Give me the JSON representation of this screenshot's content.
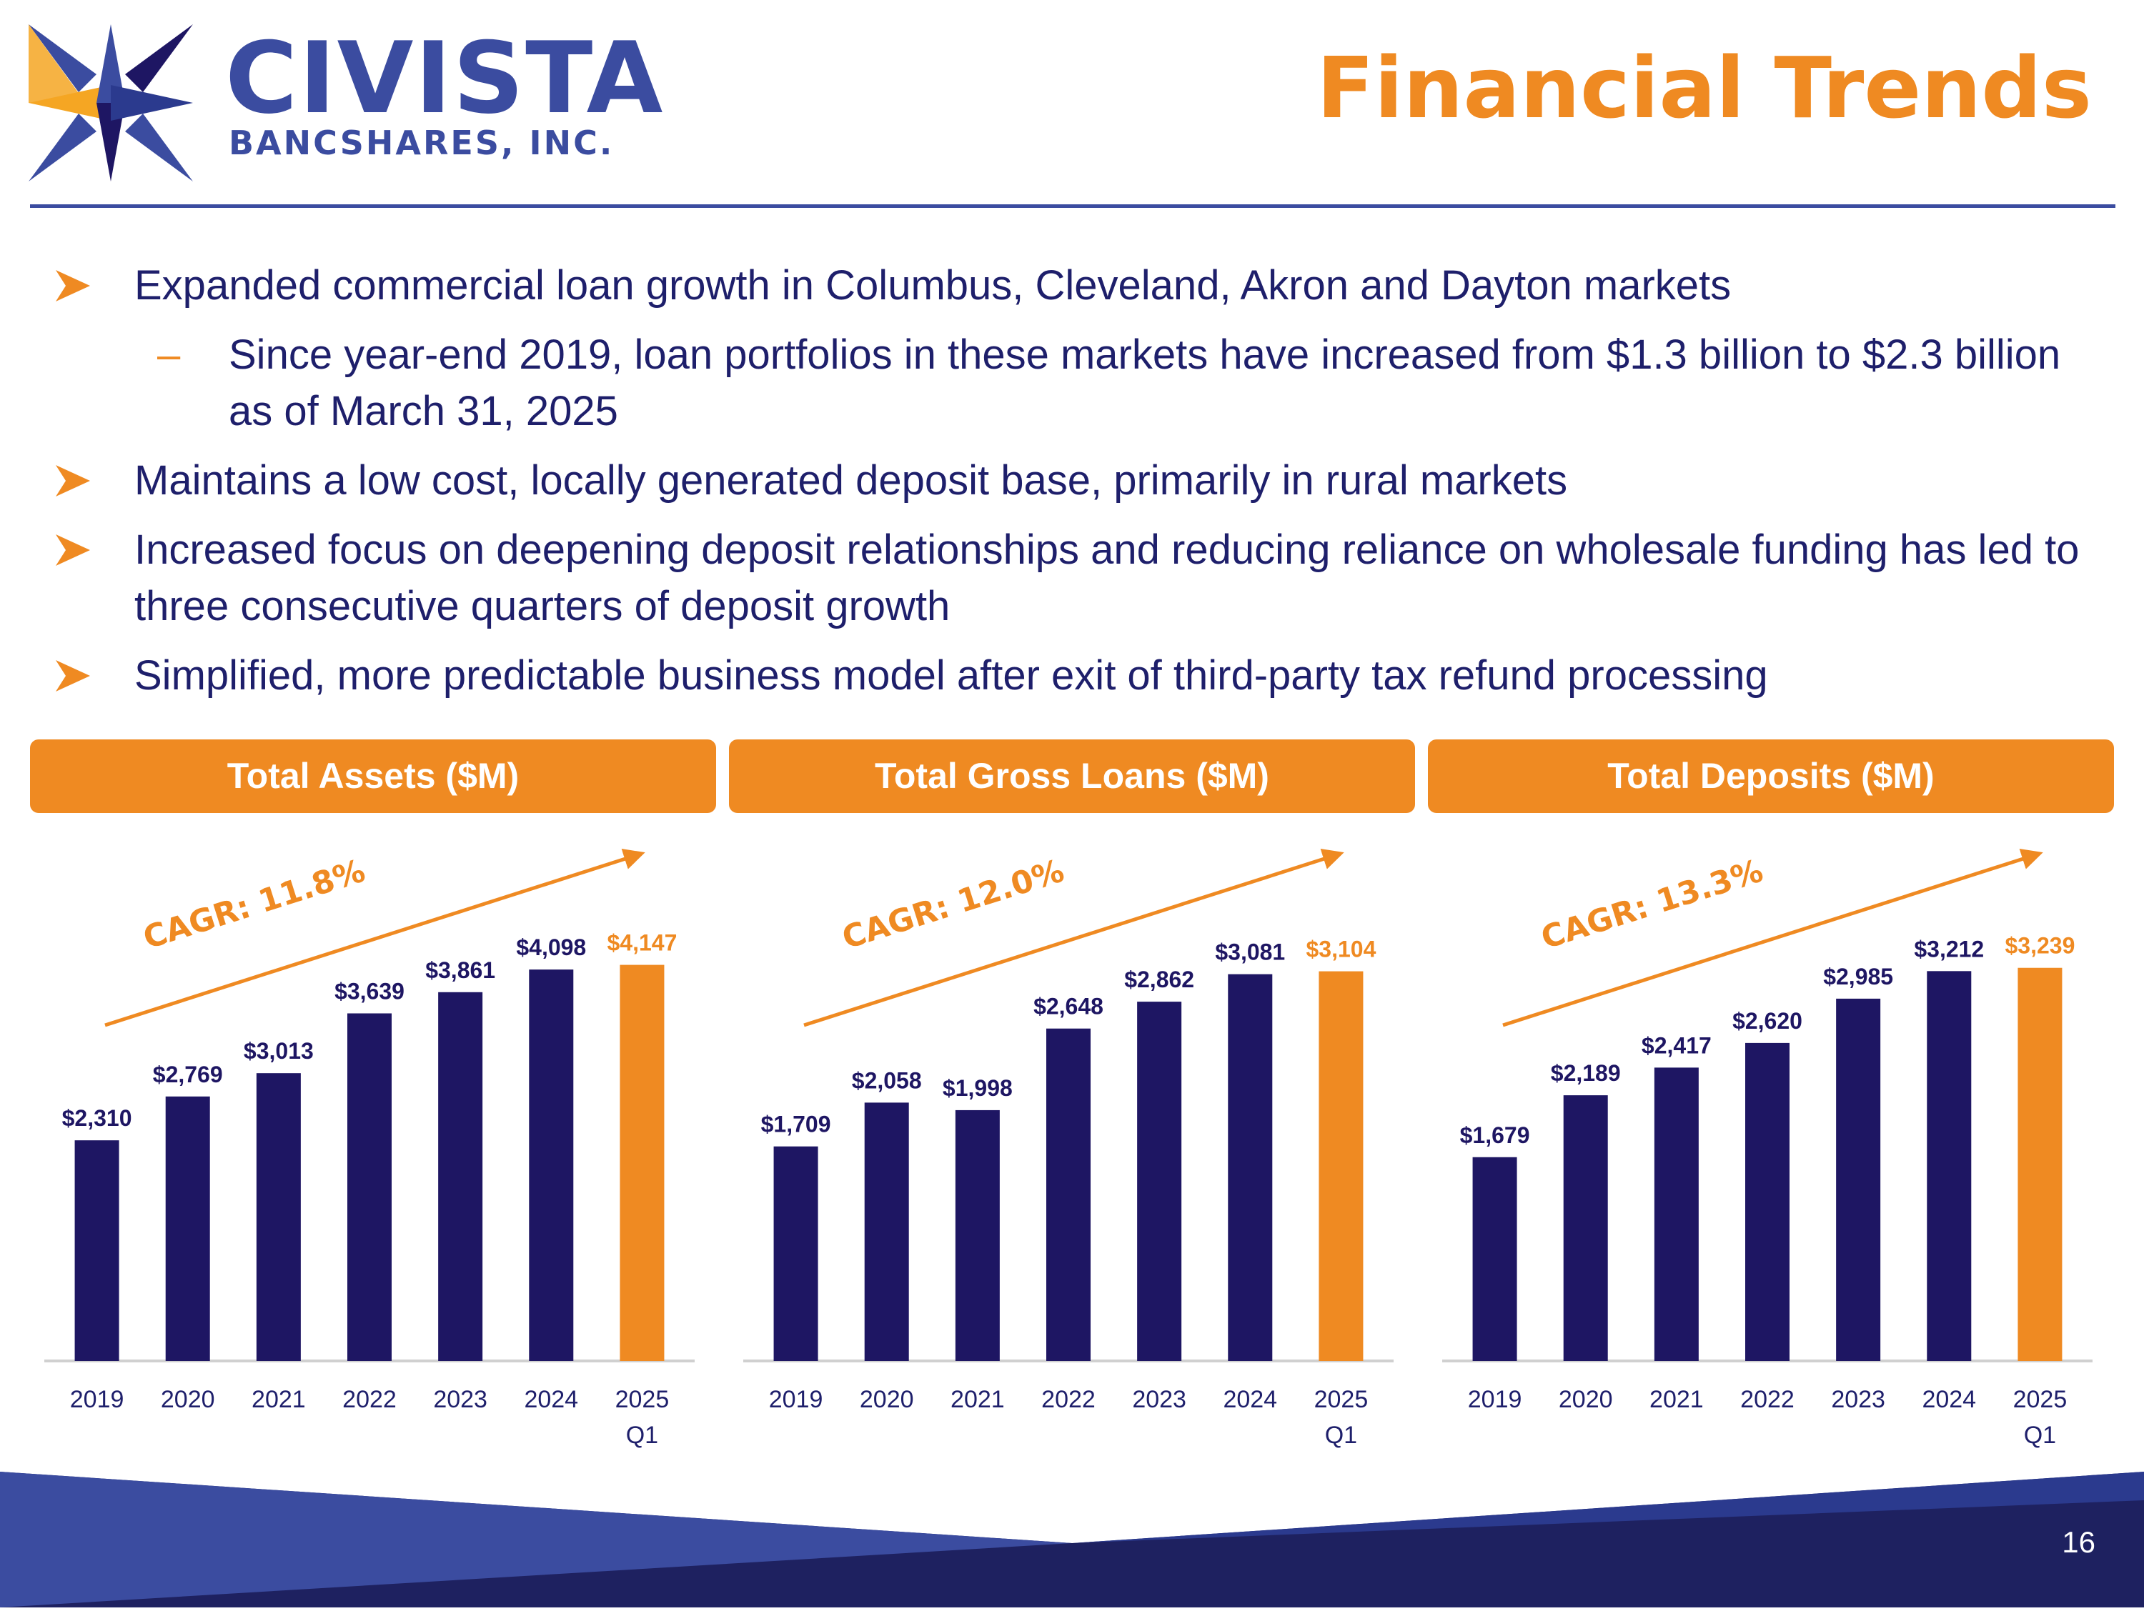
{
  "header": {
    "logo_name": "CIVISTA",
    "logo_sub": "BANCSHARES, INC.",
    "title": "Financial Trends"
  },
  "bullets": [
    {
      "text": "Expanded commercial loan growth in Columbus, Cleveland, Akron and Dayton markets"
    },
    {
      "text": "Since year-end 2019, loan portfolios in these markets have increased from $1.3 billion to $2.3 billion as of March 31, 2025",
      "sub": true
    },
    {
      "text": "Maintains a low cost, locally generated deposit base, primarily in rural markets"
    },
    {
      "text": "Increased focus on deepening deposit relationships and reducing reliance on wholesale funding has led to three consecutive quarters of deposit growth"
    },
    {
      "text": "Simplified, more predictable business model after exit of third-party tax refund processing"
    }
  ],
  "colors": {
    "navy": "#1e1663",
    "orange": "#ef8a22",
    "brand_blue": "#3b4ca0"
  },
  "chart_data": [
    {
      "type": "bar",
      "title": "Total Assets ($M)",
      "categories": [
        "2019",
        "2020",
        "2021",
        "2022",
        "2023",
        "2024",
        "2025 Q1"
      ],
      "values": [
        2310,
        2769,
        3013,
        3639,
        3861,
        4098,
        4147
      ],
      "labels": [
        "$2,310",
        "$2,769",
        "$3,013",
        "$3,639",
        "$3,861",
        "$4,098",
        "$4,147"
      ],
      "annotation": "CAGR: 11.8%",
      "highlight_last": true,
      "ylim": [
        0,
        4600
      ]
    },
    {
      "type": "bar",
      "title": "Total Gross Loans ($M)",
      "categories": [
        "2019",
        "2020",
        "2021",
        "2022",
        "2023",
        "2024",
        "2025 Q1"
      ],
      "values": [
        1709,
        2058,
        1998,
        2648,
        2862,
        3081,
        3104
      ],
      "labels": [
        "$1,709",
        "$2,058",
        "$1,998",
        "$2,648",
        "$2,862",
        "$3,081",
        "$3,104"
      ],
      "annotation": "CAGR: 12.0%",
      "highlight_last": true,
      "ylim": [
        0,
        3500
      ]
    },
    {
      "type": "bar",
      "title": "Total Deposits ($M)",
      "categories": [
        "2019",
        "2020",
        "2021",
        "2022",
        "2023",
        "2024",
        "2025 Q1"
      ],
      "values": [
        1679,
        2189,
        2417,
        2620,
        2985,
        3212,
        3239
      ],
      "labels": [
        "$1,679",
        "$2,189",
        "$2,417",
        "$2,620",
        "$2,985",
        "$3,212",
        "$3,239"
      ],
      "annotation": "CAGR: 13.3%",
      "highlight_last": true,
      "ylim": [
        0,
        3620
      ]
    }
  ],
  "footer": {
    "page_number": "16"
  }
}
